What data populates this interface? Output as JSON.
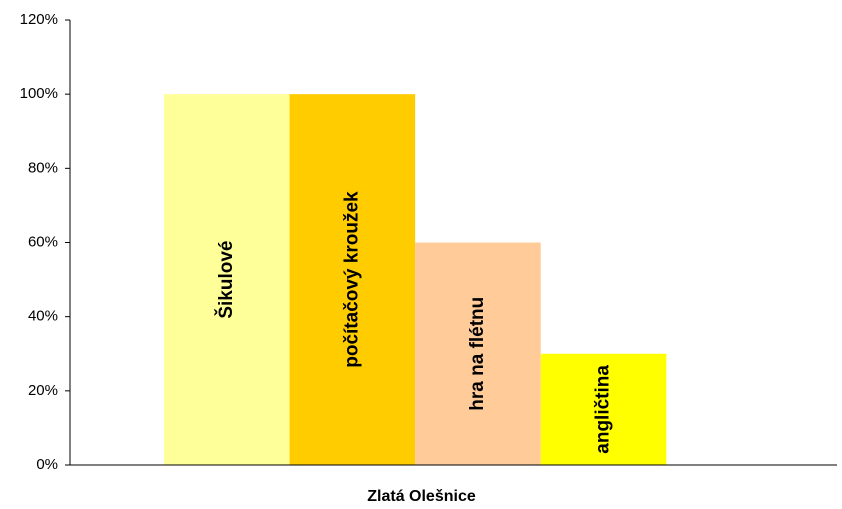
{
  "chart_data": {
    "type": "bar",
    "categories": [
      "Zlatá Olešnice"
    ],
    "series": [
      {
        "name": "Šikulové",
        "color": "#ffff99",
        "values": [
          100
        ]
      },
      {
        "name": "počítačový kroužek",
        "color": "#ffcc00",
        "values": [
          100
        ]
      },
      {
        "name": "hra na flétnu",
        "color": "#ffcc99",
        "values": [
          60
        ]
      },
      {
        "name": "angličtina",
        "color": "#ffff00",
        "values": [
          30
        ]
      }
    ],
    "ylim": [
      0,
      120
    ],
    "yticks": [
      {
        "value": 0,
        "label": "0%"
      },
      {
        "value": 20,
        "label": "20%"
      },
      {
        "value": 40,
        "label": "40%"
      },
      {
        "value": 60,
        "label": "60%"
      },
      {
        "value": 80,
        "label": "80%"
      },
      {
        "value": 100,
        "label": "100%"
      },
      {
        "value": 120,
        "label": "120%"
      }
    ],
    "grid": false
  }
}
